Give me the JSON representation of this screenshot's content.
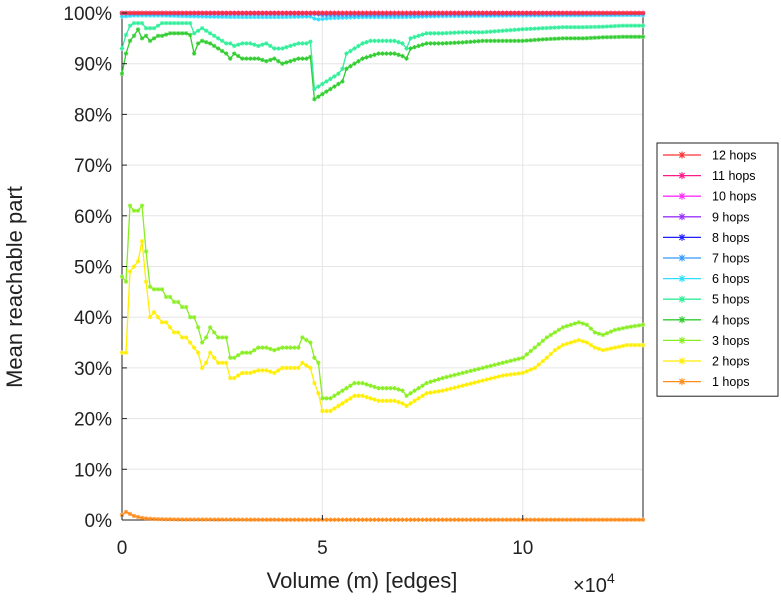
{
  "chart_data": {
    "type": "line",
    "title": "",
    "xlabel": "Volume (m) [edges]",
    "ylabel": "Mean reachable part",
    "x_multiplier_base": "×10",
    "x_multiplier_exp": "4",
    "xlim": [
      0,
      130000
    ],
    "ylim": [
      0,
      100
    ],
    "xticks": [
      0,
      50000,
      100000
    ],
    "xtick_labels": [
      "0",
      "5",
      "10"
    ],
    "yticks": [
      0,
      10,
      20,
      30,
      40,
      50,
      60,
      70,
      80,
      90,
      100
    ],
    "ytick_labels": [
      "0%",
      "10%",
      "20%",
      "30%",
      "40%",
      "50%",
      "60%",
      "70%",
      "80%",
      "90%",
      "100%"
    ],
    "grid": true,
    "legend_position": "right",
    "series": [
      {
        "name": "12 hops",
        "color": "#ff3030",
        "x": [
          0,
          130000
        ],
        "y": [
          100,
          100
        ]
      },
      {
        "name": "11 hops",
        "color": "#ff1a8c",
        "x": [
          0,
          130000
        ],
        "y": [
          100,
          100
        ]
      },
      {
        "name": "10 hops",
        "color": "#ff30ff",
        "x": [
          0,
          130000
        ],
        "y": [
          100,
          100
        ]
      },
      {
        "name": "9 hops",
        "color": "#9933ff",
        "x": [
          0,
          130000
        ],
        "y": [
          100,
          100
        ]
      },
      {
        "name": "8 hops",
        "color": "#2020ff",
        "x": [
          0,
          130000
        ],
        "y": [
          100,
          100
        ]
      },
      {
        "name": "7 hops",
        "color": "#3399ff",
        "x": [
          0,
          48000,
          50000,
          130000
        ],
        "y": [
          99.9,
          99.8,
          99.6,
          99.9
        ]
      },
      {
        "name": "6 hops",
        "color": "#30ddff",
        "x": [
          0,
          3000,
          10000,
          20000,
          30000,
          40000,
          47000,
          48500,
          52000,
          60000,
          70000,
          80000,
          100000,
          130000
        ],
        "y": [
          99.3,
          99.5,
          99.5,
          99.3,
          99.2,
          99.2,
          99.3,
          98.7,
          99.0,
          99.2,
          99.2,
          99.4,
          99.5,
          99.6
        ]
      },
      {
        "name": "5 hops",
        "color": "#30ee99",
        "x": [
          0,
          1500,
          2500,
          4000,
          5000,
          6000,
          7000,
          8000,
          9000,
          10000,
          12000,
          14000,
          16000,
          17500,
          18000,
          19000,
          20000,
          22000,
          24000,
          26000,
          27000,
          28000,
          30000,
          32000,
          34000,
          36000,
          38000,
          40000,
          42000,
          44000,
          46000,
          47500,
          48000,
          50000,
          52000,
          54000,
          55000,
          56000,
          58000,
          60000,
          62000,
          64000,
          66000,
          68000,
          70000,
          71000,
          72000,
          74000,
          76000,
          80000,
          85000,
          90000,
          95000,
          100000,
          105000,
          110000,
          115000,
          120000,
          125000,
          130000
        ],
        "y": [
          93,
          97,
          98,
          98,
          98,
          97,
          97,
          97,
          97.5,
          98,
          98,
          98,
          98,
          98,
          96,
          96.5,
          97,
          96,
          95,
          94,
          94,
          93.5,
          94,
          94,
          93.5,
          94,
          93,
          93,
          93.5,
          94,
          94,
          94.5,
          85,
          86,
          87,
          88,
          89,
          92,
          93,
          94,
          94.5,
          94.5,
          94.5,
          94.5,
          94,
          93,
          95,
          95.5,
          96,
          96,
          96.2,
          96.2,
          96.5,
          96.8,
          97,
          97.2,
          97.2,
          97.3,
          97.5,
          97.5
        ]
      },
      {
        "name": "4 hops",
        "color": "#30cc30",
        "x": [
          0,
          1500,
          2500,
          3500,
          4500,
          5000,
          6000,
          7000,
          8000,
          9000,
          10000,
          12000,
          14000,
          16000,
          17500,
          18000,
          19000,
          20000,
          22000,
          24000,
          26000,
          27000,
          28000,
          30000,
          32000,
          34000,
          36000,
          38000,
          40000,
          42000,
          44000,
          46000,
          47500,
          48000,
          50000,
          52000,
          54000,
          55000,
          56000,
          58000,
          60000,
          62000,
          64000,
          66000,
          68000,
          70000,
          71000,
          72000,
          74000,
          76000,
          80000,
          85000,
          90000,
          95000,
          100000,
          105000,
          110000,
          115000,
          120000,
          125000,
          130000
        ],
        "y": [
          88,
          94,
          95,
          96,
          97.5,
          95,
          95.5,
          94.5,
          95,
          95.5,
          95.5,
          96,
          96,
          96,
          95.5,
          92,
          94,
          94.5,
          94,
          93,
          92,
          91,
          92,
          91,
          91,
          91,
          90.5,
          91,
          90,
          90.5,
          91,
          91,
          91.5,
          83,
          84,
          85,
          86,
          86.5,
          89,
          90,
          91,
          91.5,
          92,
          92,
          92,
          91.5,
          91,
          93,
          93.5,
          94,
          94,
          94.2,
          94.5,
          94.5,
          94.5,
          94.8,
          95,
          95,
          95.2,
          95.3,
          95.3
        ]
      },
      {
        "name": "3 hops",
        "color": "#88ee22",
        "x": [
          0,
          1000,
          2000,
          3000,
          4000,
          4500,
          5000,
          5500,
          6000,
          7000,
          8000,
          9000,
          10000,
          11000,
          12000,
          13000,
          14000,
          15000,
          16000,
          17000,
          18000,
          19000,
          20000,
          21000,
          22000,
          23000,
          24000,
          25000,
          26000,
          27000,
          28000,
          30000,
          32000,
          34000,
          36000,
          38000,
          40000,
          42000,
          44000,
          45000,
          46000,
          47000,
          48000,
          49000,
          50000,
          52000,
          54000,
          56000,
          58000,
          60000,
          62000,
          64000,
          66000,
          68000,
          70000,
          71000,
          72000,
          74000,
          76000,
          80000,
          85000,
          90000,
          95000,
          100000,
          103000,
          106000,
          108000,
          110000,
          112000,
          114000,
          116000,
          118000,
          120000,
          123000,
          126000,
          130000
        ],
        "y": [
          48,
          47,
          62,
          61,
          61,
          61,
          62,
          61.5,
          53,
          46,
          45.5,
          45.5,
          45.5,
          44,
          44,
          43,
          43,
          42,
          42,
          40,
          40,
          38,
          35,
          36,
          38,
          37,
          36,
          36,
          36,
          32,
          32,
          33,
          33,
          34,
          34,
          33.5,
          34,
          34,
          34,
          36,
          35.5,
          35,
          32,
          31,
          24,
          24,
          25,
          26,
          27,
          27,
          26.5,
          26,
          26,
          26,
          25.5,
          24.5,
          25,
          26,
          27,
          28,
          29,
          30,
          31,
          32,
          34,
          36,
          37,
          38,
          38.5,
          39,
          38.5,
          37,
          36.5,
          37.5,
          38,
          38.5
        ]
      },
      {
        "name": "2 hops",
        "color": "#ffee00",
        "x": [
          0,
          1000,
          2000,
          3000,
          4000,
          4500,
          5000,
          5500,
          6000,
          7000,
          8000,
          9000,
          10000,
          11000,
          12000,
          13000,
          14000,
          15000,
          16000,
          17000,
          18000,
          19000,
          20000,
          21000,
          22000,
          23000,
          24000,
          25000,
          26000,
          27000,
          28000,
          30000,
          32000,
          34000,
          36000,
          38000,
          40000,
          42000,
          44000,
          45000,
          46000,
          47000,
          48000,
          49000,
          50000,
          52000,
          54000,
          56000,
          58000,
          60000,
          62000,
          64000,
          66000,
          68000,
          70000,
          71000,
          72000,
          74000,
          76000,
          80000,
          85000,
          90000,
          95000,
          100000,
          103000,
          106000,
          108000,
          110000,
          112000,
          114000,
          116000,
          118000,
          120000,
          123000,
          126000,
          130000
        ],
        "y": [
          33,
          33,
          49,
          50,
          51,
          53,
          55,
          54,
          47,
          40,
          41,
          40,
          39,
          39,
          38,
          37,
          37,
          36,
          36,
          35,
          34,
          33,
          30,
          31,
          33,
          32,
          31,
          31,
          31,
          28,
          28,
          29,
          29,
          29.5,
          29.5,
          29,
          30,
          30,
          30,
          31,
          30.5,
          30,
          27,
          25,
          21.5,
          21.5,
          22.5,
          23.5,
          24.5,
          24.5,
          24,
          23.5,
          23.5,
          23.5,
          23,
          22.5,
          23,
          24,
          25,
          25.5,
          26.5,
          27.5,
          28.5,
          29,
          30,
          32,
          33.5,
          34.5,
          35,
          35.5,
          35,
          34,
          33.5,
          34,
          34.5,
          34.5
        ]
      },
      {
        "name": "1 hops",
        "color": "#ff8c1a",
        "x": [
          0,
          1000,
          2000,
          3000,
          4000,
          5000,
          6000,
          8000,
          10000,
          15000,
          20000,
          40000,
          60000,
          80000,
          100000,
          130000
        ],
        "y": [
          1,
          1.6,
          1.2,
          0.8,
          0.6,
          0.4,
          0.3,
          0.2,
          0.15,
          0.1,
          0.1,
          0.05,
          0.05,
          0.05,
          0.05,
          0.05
        ]
      }
    ]
  }
}
